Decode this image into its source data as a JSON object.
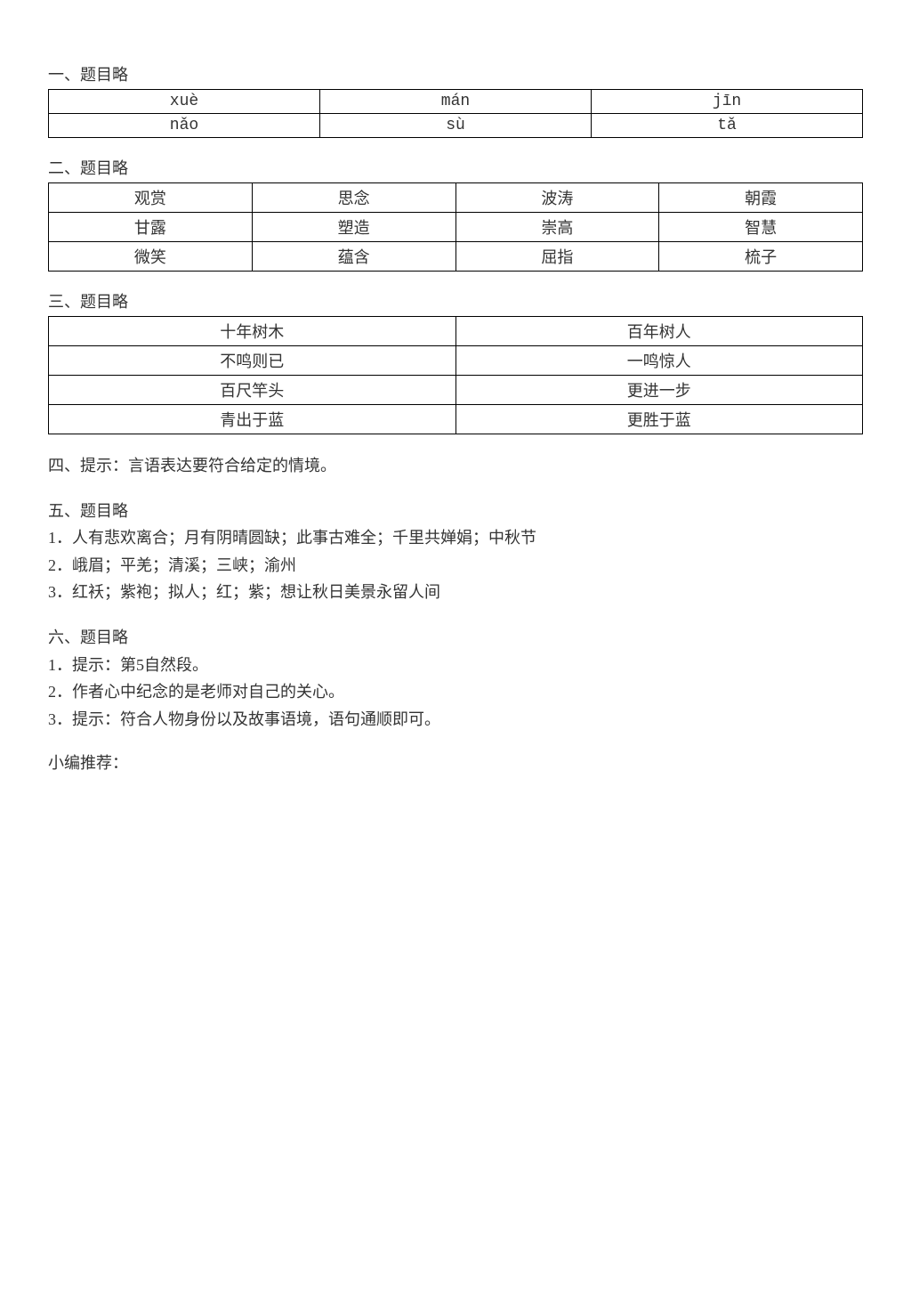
{
  "section1": {
    "title": "一、题目略",
    "rows": [
      [
        "xuè",
        "mán",
        "jīn"
      ],
      [
        "nǎo",
        "sù",
        "tǎ"
      ]
    ]
  },
  "section2": {
    "title": "二、题目略",
    "rows": [
      [
        "观赏",
        "思念",
        "波涛",
        "朝霞"
      ],
      [
        "甘露",
        "塑造",
        "崇高",
        "智慧"
      ],
      [
        "微笑",
        "蕴含",
        "屈指",
        "梳子"
      ]
    ]
  },
  "section3": {
    "title": "三、题目略",
    "rows": [
      [
        "十年树木",
        "百年树人"
      ],
      [
        "不鸣则已",
        "一鸣惊人"
      ],
      [
        "百尺竿头",
        "更进一步"
      ],
      [
        "青出于蓝",
        "更胜于蓝"
      ]
    ]
  },
  "section4": {
    "text": "四、提示：言语表达要符合给定的情境。"
  },
  "section5": {
    "title": "五、题目略",
    "items": [
      "1．人有悲欢离合；月有阴晴圆缺；此事古难全；千里共婵娟；中秋节",
      "2．峨眉；平羌；清溪；三峡；渝州",
      "3．红袄；紫袍；拟人；红；紫；想让秋日美景永留人间"
    ]
  },
  "section6": {
    "title": "六、题目略",
    "items": [
      "1．提示：第5自然段。",
      "2．作者心中纪念的是老师对自己的关心。",
      "3．提示：符合人物身份以及故事语境，语句通顺即可。"
    ]
  },
  "footer": "小编推荐："
}
